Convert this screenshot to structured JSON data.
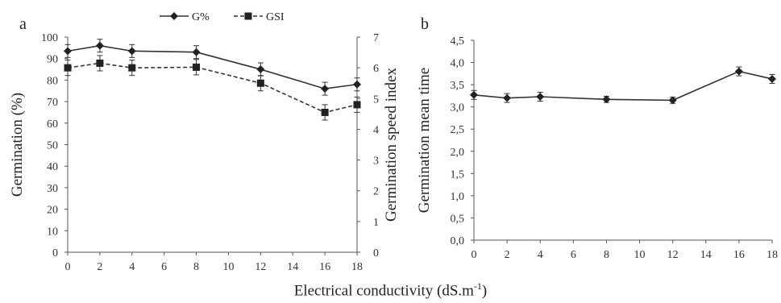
{
  "figure": {
    "xlabel_main": "Electrical conductivity (dS.m",
    "xlabel_sup": "-1",
    "xlabel_end": ")"
  },
  "chart_data": [
    {
      "panel": "a",
      "type": "line",
      "x": [
        0,
        2,
        4,
        8,
        12,
        16,
        18
      ],
      "xticks": [
        "0",
        "2",
        "4",
        "6",
        "8",
        "10",
        "12",
        "14",
        "16",
        "18"
      ],
      "xlim": [
        0,
        18
      ],
      "ylabel": "Germination (%)",
      "ylim": [
        0,
        100
      ],
      "yticks": [
        "0",
        "10",
        "20",
        "30",
        "40",
        "50",
        "60",
        "70",
        "80",
        "90",
        "100"
      ],
      "y2label": "Germination speed index",
      "y2lim": [
        0,
        7
      ],
      "y2ticks": [
        "0",
        "1",
        "2",
        "3",
        "4",
        "5",
        "6",
        "7"
      ],
      "legend_position": "top",
      "series": [
        {
          "name": "G%",
          "axis": "left",
          "marker": "diamond",
          "line": "solid",
          "values": [
            93.5,
            96.0,
            93.5,
            93.0,
            85.0,
            76.0,
            78.0
          ],
          "errors": [
            3.0,
            3.0,
            3.0,
            3.0,
            3.0,
            3.0,
            3.0
          ]
        },
        {
          "name": "GSI",
          "axis": "right",
          "marker": "square",
          "line": "dashed",
          "values": [
            6.0,
            6.15,
            6.0,
            6.02,
            5.5,
            4.55,
            4.8
          ],
          "errors": [
            0.25,
            0.25,
            0.25,
            0.25,
            0.25,
            0.25,
            0.25
          ]
        }
      ]
    },
    {
      "panel": "b",
      "type": "line",
      "x": [
        0,
        2,
        4,
        8,
        12,
        16,
        18
      ],
      "xticks": [
        "0",
        "2",
        "4",
        "6",
        "8",
        "10",
        "12",
        "14",
        "16",
        "18"
      ],
      "xlim": [
        0,
        18
      ],
      "ylabel": "Germination mean time",
      "ylim": [
        0,
        4.5
      ],
      "yticks": [
        "0,0",
        "0,5",
        "1,0",
        "1,5",
        "2,0",
        "2,5",
        "3,0",
        "3,5",
        "4,0",
        "4,5"
      ],
      "series": [
        {
          "marker": "diamond",
          "line": "solid",
          "values": [
            3.27,
            3.2,
            3.23,
            3.17,
            3.15,
            3.8,
            3.63
          ],
          "errors": [
            0.1,
            0.1,
            0.1,
            0.07,
            0.07,
            0.1,
            0.1
          ]
        }
      ]
    }
  ]
}
